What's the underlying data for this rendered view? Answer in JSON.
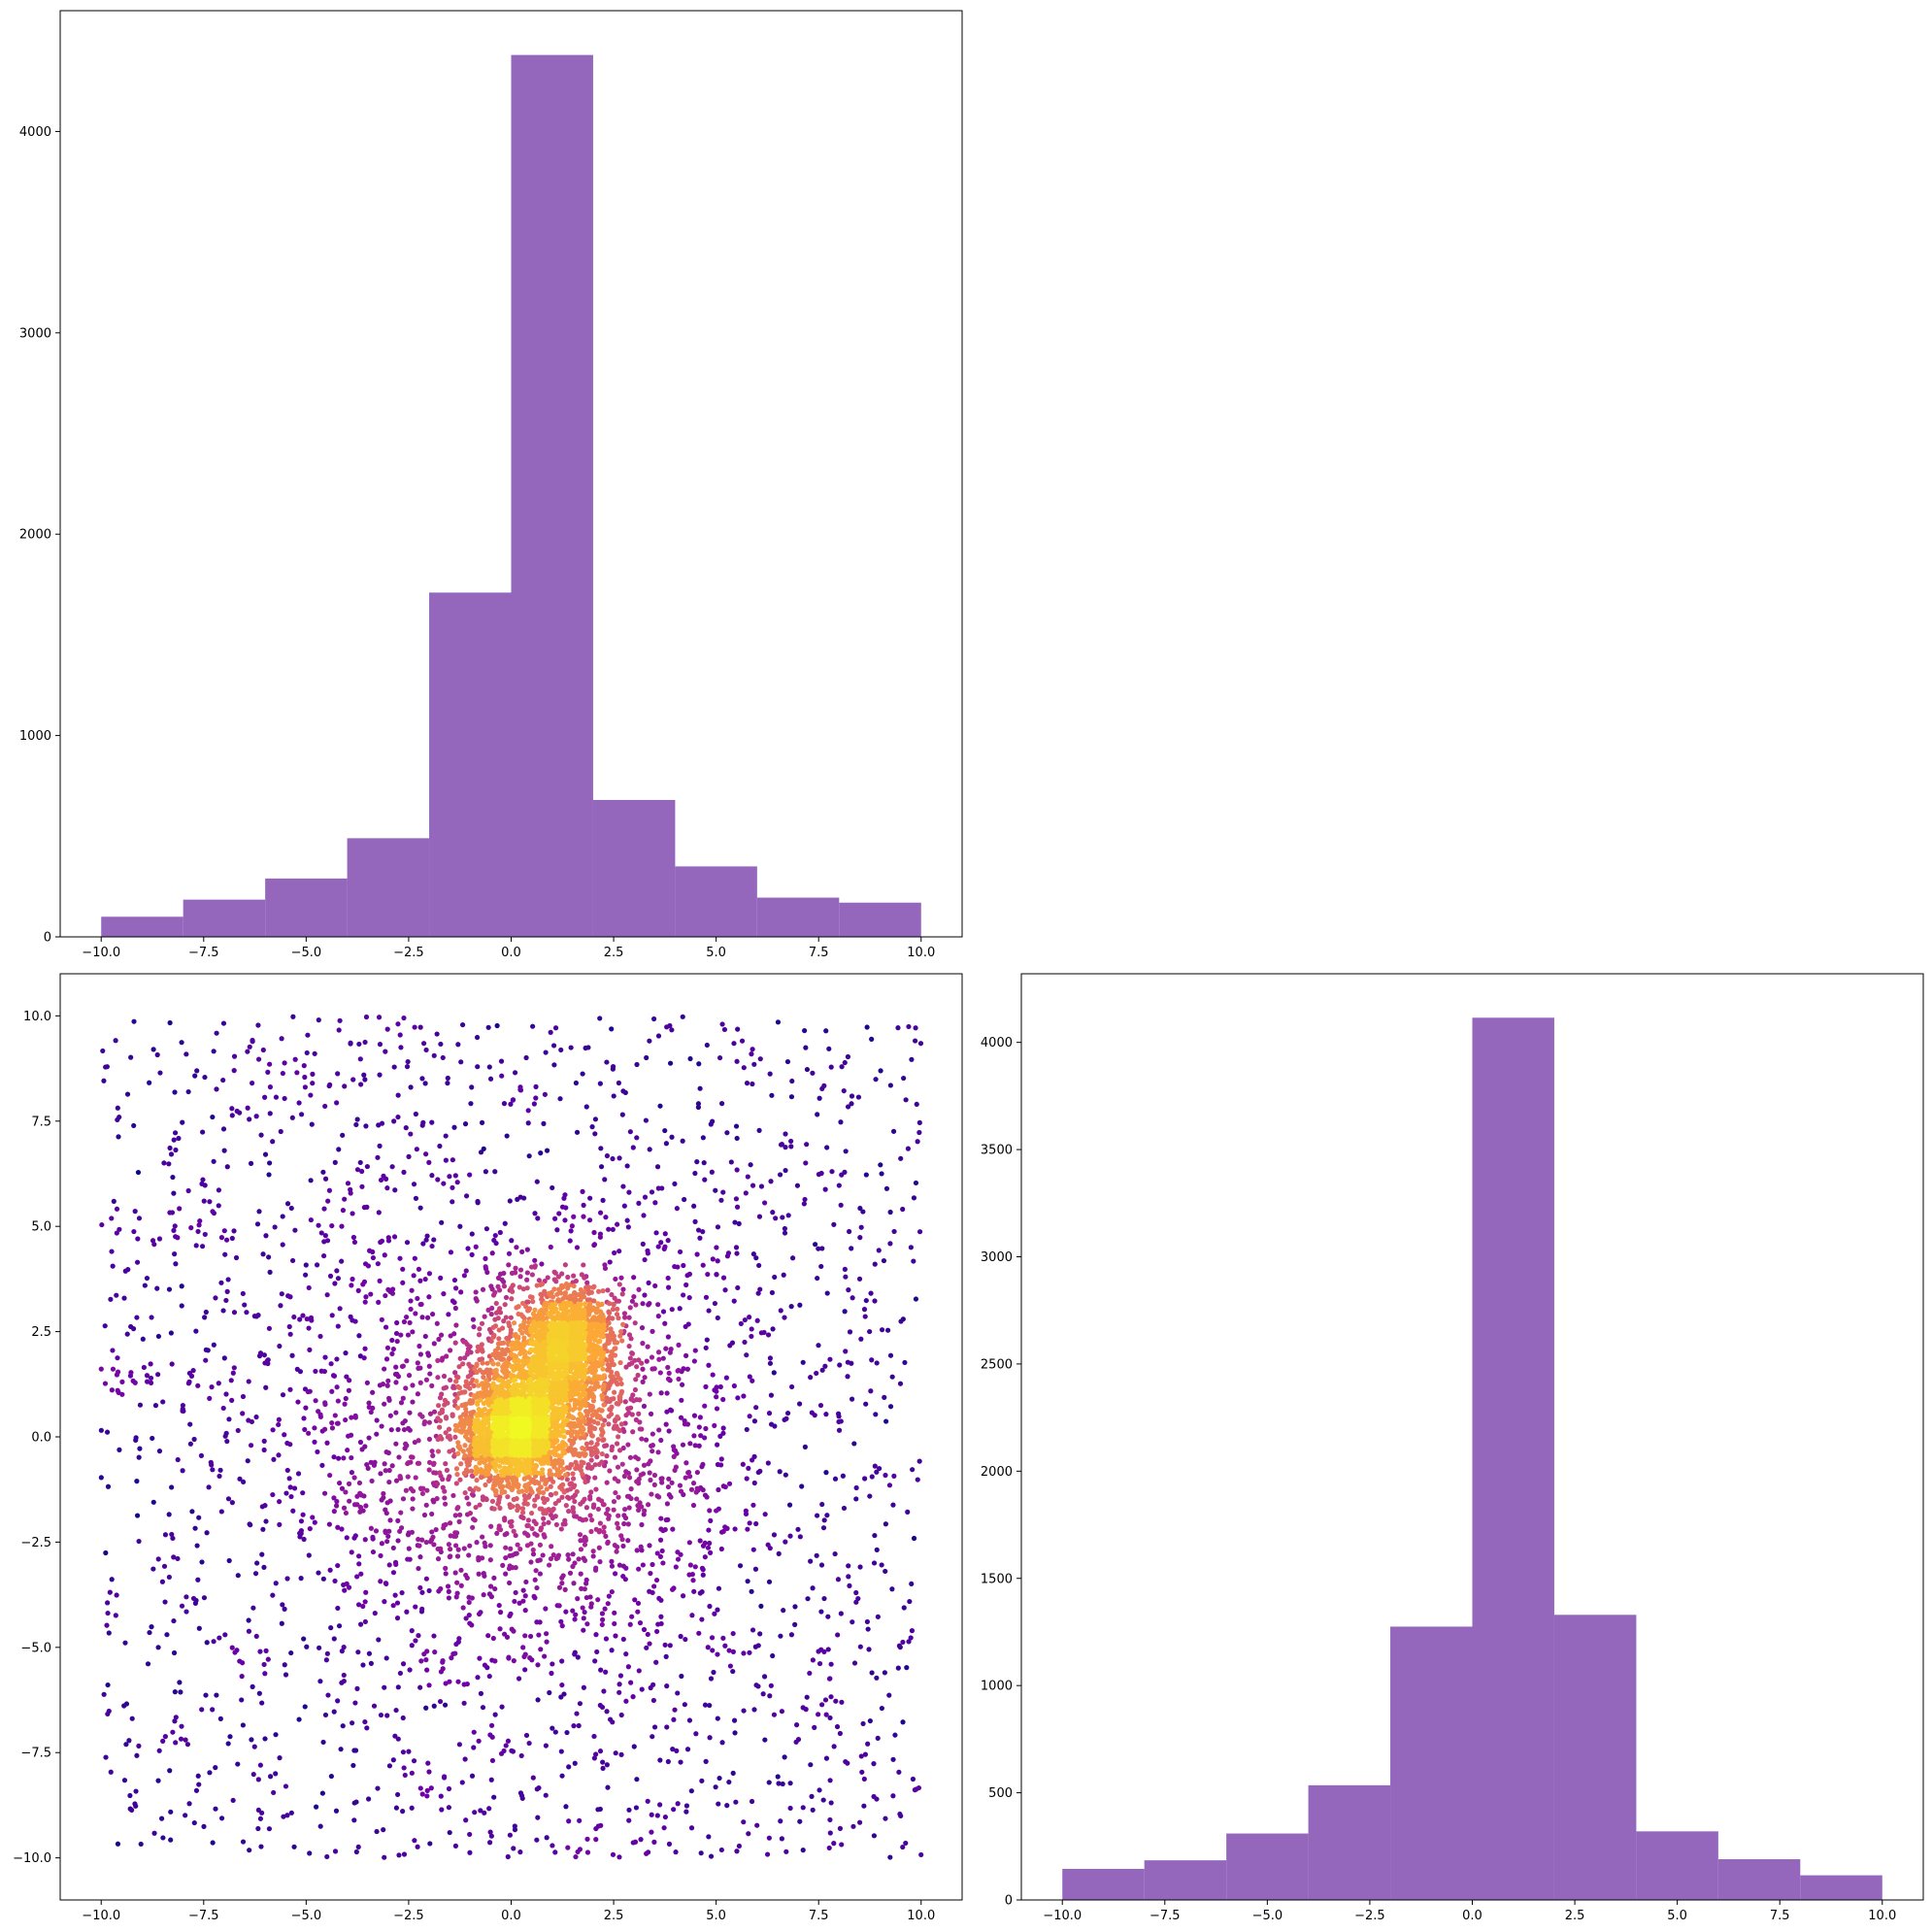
{
  "chart_data": [
    {
      "type": "bar",
      "subtype": "histogram",
      "panel": "top-left",
      "title": "",
      "xlabel": "",
      "ylabel": "",
      "bin_edges": [
        -10,
        -8,
        -6,
        -4,
        -2,
        0,
        2,
        4,
        6,
        8,
        10
      ],
      "values": [
        100,
        185,
        290,
        490,
        1710,
        4380,
        680,
        350,
        195,
        170
      ],
      "xlim": [
        -11.0,
        11.0
      ],
      "ylim": [
        0,
        4600
      ],
      "xticks": [
        -10.0,
        -7.5,
        -5.0,
        -2.5,
        0.0,
        2.5,
        5.0,
        7.5,
        10.0
      ],
      "xtick_labels": [
        "−10.0",
        "−7.5",
        "−5.0",
        "−2.5",
        "0.0",
        "2.5",
        "5.0",
        "7.5",
        "10.0"
      ],
      "yticks": [
        0,
        1000,
        2000,
        3000,
        4000
      ],
      "ytick_labels": [
        "0",
        "1000",
        "2000",
        "3000",
        "4000"
      ],
      "color": "#9467bd",
      "grid": false
    },
    {
      "type": "scatter",
      "panel": "bottom-left",
      "title": "",
      "xlabel": "",
      "ylabel": "",
      "xlim": [
        -11.0,
        11.0
      ],
      "ylim": [
        -11.0,
        11.0
      ],
      "xticks": [
        -10.0,
        -7.5,
        -5.0,
        -2.5,
        0.0,
        2.5,
        5.0,
        7.5,
        10.0
      ],
      "xtick_labels": [
        "−10.0",
        "−7.5",
        "−5.0",
        "−2.5",
        "0.0",
        "2.5",
        "5.0",
        "7.5",
        "10.0"
      ],
      "yticks": [
        -10.0,
        -7.5,
        -5.0,
        -2.5,
        0.0,
        2.5,
        5.0,
        7.5,
        10.0
      ],
      "ytick_labels": [
        "−10.0",
        "−7.5",
        "−5.0",
        "−2.5",
        "0.0",
        "2.5",
        "5.0",
        "7.5",
        "10.0"
      ],
      "colormap": "plasma",
      "color_by": "point density",
      "colormap_stops": [
        "#0d0887",
        "#6a00a8",
        "#b12a90",
        "#e16462",
        "#fca636",
        "#f0f921"
      ],
      "components": [
        {
          "description": "uniform background",
          "x_range": [
            -10,
            10
          ],
          "y_range": [
            -10,
            10
          ],
          "count": 2000
        },
        {
          "description": "dense core",
          "center": [
            0.1,
            0.1
          ],
          "spread": 0.6,
          "count": 1500
        },
        {
          "description": "inner cluster",
          "center": [
            0.9,
            1.2
          ],
          "spread": 0.9,
          "count": 1200
        },
        {
          "description": "upper cluster",
          "center": [
            1.4,
            2.4
          ],
          "spread": 0.55,
          "count": 800
        },
        {
          "description": "diffuse cloud",
          "center": [
            0.3,
            -0.2
          ],
          "spread": 2.6,
          "count": 1500
        }
      ],
      "grid": false
    },
    {
      "type": "bar",
      "subtype": "histogram",
      "panel": "bottom-right",
      "title": "",
      "xlabel": "",
      "ylabel": "",
      "bin_edges": [
        -10,
        -8,
        -6,
        -4,
        -2,
        0,
        2,
        4,
        6,
        8,
        10
      ],
      "values": [
        145,
        185,
        310,
        535,
        1275,
        4115,
        1330,
        320,
        190,
        115
      ],
      "xlim": [
        -11.0,
        11.0
      ],
      "ylim": [
        0,
        4320
      ],
      "xticks": [
        -10.0,
        -7.5,
        -5.0,
        -2.5,
        0.0,
        2.5,
        5.0,
        7.5,
        10.0
      ],
      "xtick_labels": [
        "−10.0",
        "−7.5",
        "−5.0",
        "−2.5",
        "0.0",
        "2.5",
        "5.0",
        "7.5",
        "10.0"
      ],
      "yticks": [
        0,
        500,
        1000,
        1500,
        2000,
        2500,
        3000,
        3500,
        4000
      ],
      "ytick_labels": [
        "0",
        "500",
        "1000",
        "1500",
        "2000",
        "2500",
        "3000",
        "3500",
        "4000"
      ],
      "color": "#9467bd",
      "grid": false
    }
  ]
}
